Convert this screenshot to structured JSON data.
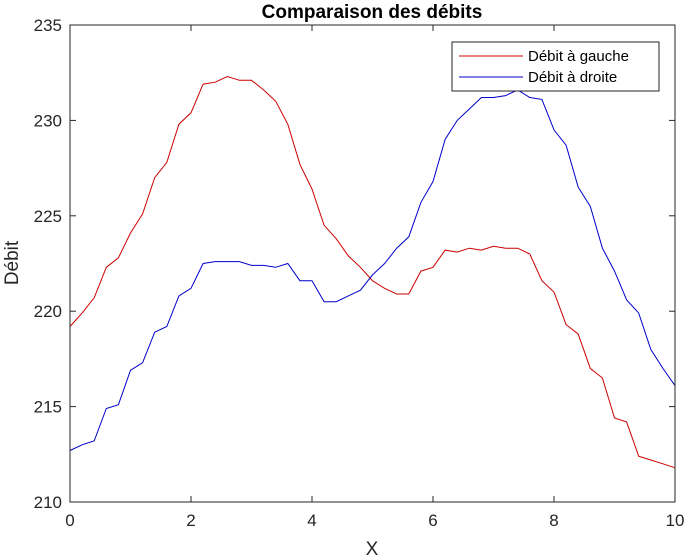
{
  "chart_data": {
    "type": "line",
    "title": "Comparaison des débits",
    "xlabel": "X",
    "ylabel": "Débit",
    "xlim": [
      0,
      10
    ],
    "ylim": [
      210,
      235
    ],
    "xticks": [
      0,
      2,
      4,
      6,
      8,
      10
    ],
    "yticks": [
      210,
      215,
      220,
      225,
      230,
      235
    ],
    "grid": false,
    "legend_position": "top-right",
    "x": [
      0,
      0.2,
      0.4,
      0.6,
      0.8,
      1.0,
      1.2,
      1.4,
      1.6,
      1.8,
      2.0,
      2.2,
      2.4,
      2.6,
      2.8,
      3.0,
      3.2,
      3.4,
      3.6,
      3.8,
      4.0,
      4.2,
      4.4,
      4.6,
      4.8,
      5.0,
      5.2,
      5.4,
      5.6,
      5.8,
      6.0,
      6.2,
      6.4,
      6.6,
      6.8,
      7.0,
      7.2,
      7.4,
      7.6,
      7.8,
      8.0,
      8.2,
      8.4,
      8.6,
      8.8,
      9.0,
      9.2,
      9.4,
      9.6,
      9.8,
      10.0
    ],
    "series": [
      {
        "name": "Débit à gauche",
        "color": "#cc0000",
        "values": [
          219.2,
          219.9,
          220.7,
          222.3,
          222.8,
          224.1,
          225.1,
          227.0,
          227.8,
          229.8,
          230.4,
          231.9,
          232.0,
          232.3,
          232.1,
          232.1,
          231.6,
          231.0,
          229.8,
          227.7,
          226.4,
          224.5,
          223.8,
          222.9,
          222.3,
          221.6,
          221.2,
          220.9,
          220.9,
          222.1,
          222.3,
          223.2,
          223.1,
          223.3,
          223.2,
          223.4,
          223.3,
          223.3,
          223.0,
          221.6,
          221.0,
          219.3,
          218.8,
          217.0,
          216.5,
          214.4,
          214.2,
          212.4,
          212.2,
          212.0,
          211.8
        ]
      },
      {
        "name": "Débit à droite",
        "color": "#0000cc",
        "values": [
          212.7,
          213.0,
          213.2,
          214.9,
          215.1,
          216.9,
          217.3,
          218.9,
          219.2,
          220.8,
          221.2,
          222.5,
          222.6,
          222.6,
          222.6,
          222.4,
          222.4,
          222.3,
          222.5,
          221.6,
          221.6,
          220.5,
          220.5,
          220.8,
          221.1,
          221.9,
          222.5,
          223.3,
          223.9,
          225.7,
          226.8,
          229.0,
          230.0,
          230.6,
          231.2,
          231.2,
          231.3,
          231.6,
          231.2,
          231.1,
          229.5,
          228.7,
          226.5,
          225.5,
          223.3,
          222.1,
          220.6,
          219.9,
          218.0,
          217.0,
          216.1
        ]
      }
    ]
  }
}
